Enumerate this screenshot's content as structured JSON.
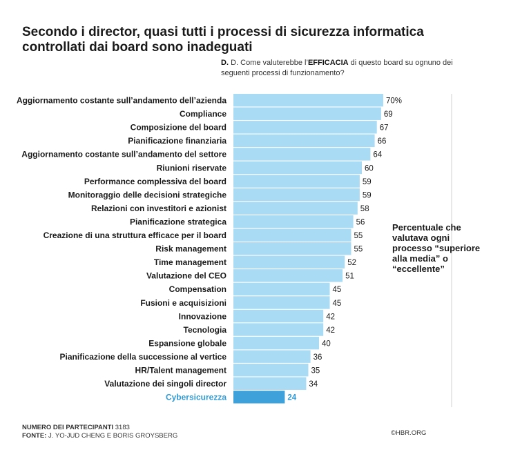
{
  "title": "Secondo i director, quasi tutti i processi di sicurezza informatica controllati dai board sono inadeguati",
  "question": {
    "prefix": "D.",
    "text_before": "D. Come valuterebbe l’",
    "emphasis": "EFFICACIA",
    "text_after": " di questo board su ognuno dei seguenti processi di funzionamento?"
  },
  "callout": "Percentuale che valutava ogni processo “superiore alla media” o “eccellente”",
  "footer": {
    "participants_label": "NUMERO DEI PARTECIPANTI",
    "participants_value": "3183",
    "source_label": "FONTE:",
    "source_value": "J. YO-JUD CHENG E BORIS GROYSBERG",
    "copyright": "©HBR.ORG"
  },
  "colors": {
    "bar": "#a9dbf5",
    "highlight_bar": "#3fa1d9",
    "highlight_text": "#2f9ad6",
    "gridline": "#d0d0d0"
  },
  "chart_data": {
    "type": "bar",
    "orientation": "horizontal",
    "title": "Secondo i director, quasi tutti i processi di sicurezza informatica controllati dai board sono inadeguati",
    "xlabel": "Percentuale che valutava ogni processo “superiore alla media” o “eccellente”",
    "ylabel": "",
    "xlim": [
      0,
      100
    ],
    "first_value_suffix": "%",
    "highlight": "Cybersicurezza",
    "categories": [
      "Aggiornamento costante sull’andamento dell’azienda",
      "Compliance",
      "Composizione del board",
      "Pianificazione finanziaria",
      "Aggiornamento costante sull’andamento del settore",
      "Riunioni riservate",
      "Performance complessiva del board",
      "Monitoraggio delle decisioni strategiche",
      "Relazioni con investitori e azionist",
      "Pianificazione strategica",
      "Creazione di una struttura efficace per il board",
      "Risk management",
      "Time management",
      "Valutazione del CEO",
      "Compensation",
      "Fusioni e acquisizioni",
      "Innovazione",
      "Tecnologia",
      "Espansione globale",
      "Pianificazione della successione al vertice",
      "HR/Talent management",
      "Valutazione dei singoli director",
      "Cybersicurezza"
    ],
    "values": [
      70,
      69,
      67,
      66,
      64,
      60,
      59,
      59,
      58,
      56,
      55,
      55,
      52,
      51,
      45,
      45,
      42,
      42,
      40,
      36,
      35,
      34,
      24
    ]
  }
}
